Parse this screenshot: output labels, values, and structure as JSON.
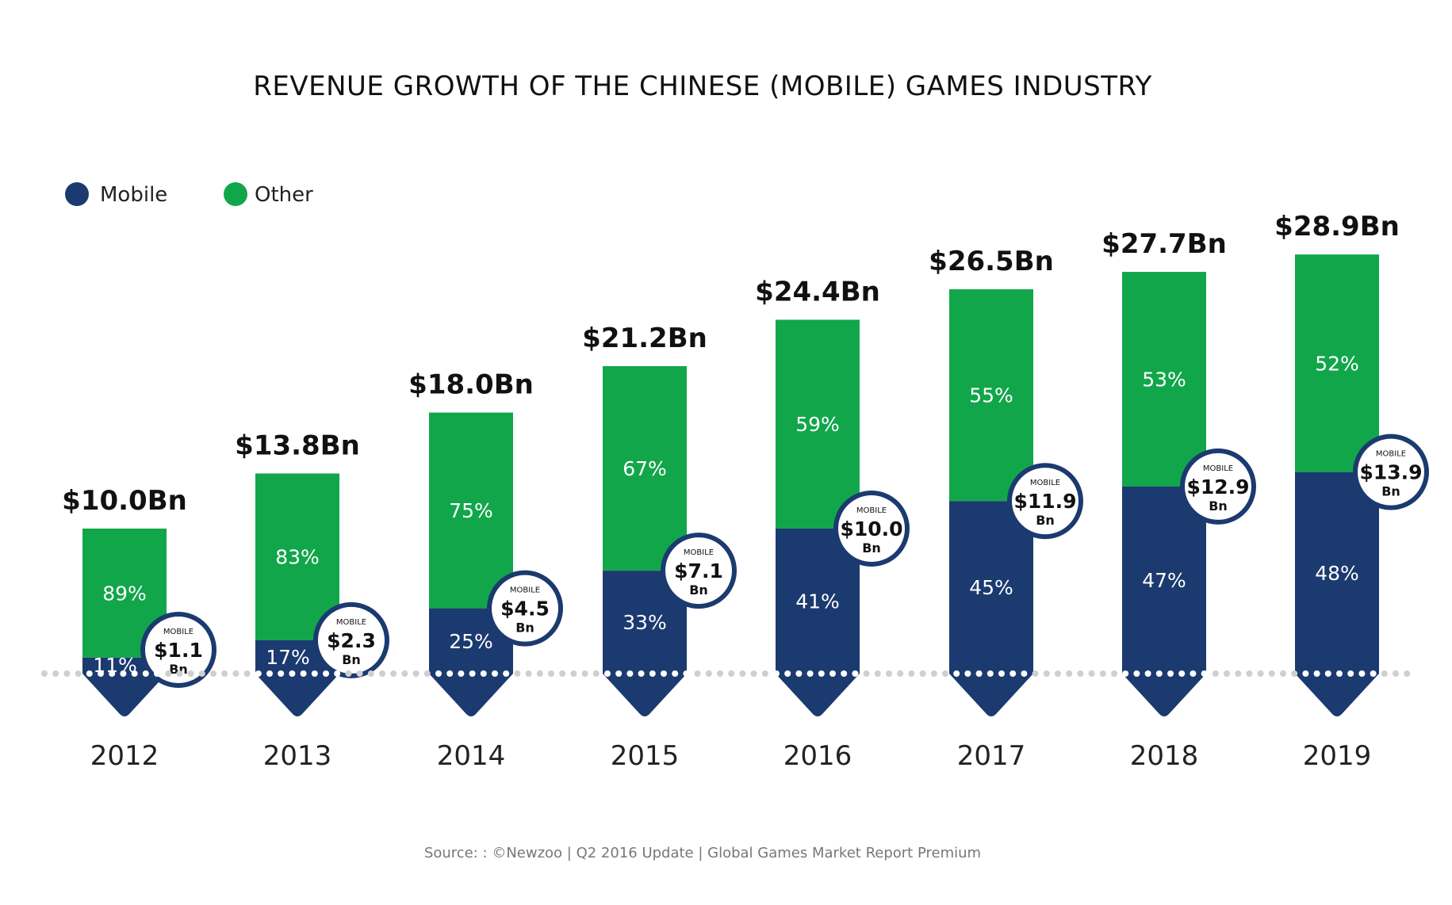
{
  "title": "REVENUE GROWTH OF THE CHINESE (MOBILE) GAMES INDUSTRY",
  "legend": [
    {
      "label": "Mobile",
      "color": "#1b3a6f"
    },
    {
      "label": "Other",
      "color": "#12a64b"
    }
  ],
  "source": "Source: : ©Newzoo | Q2 2016 Update | Global Games Market Report Premium",
  "colors": {
    "mobile": "#1b3a6f",
    "other": "#12a64b",
    "dots": "#cfcfcf"
  },
  "chart_data": {
    "type": "bar",
    "stacked": true,
    "categories": [
      "2012",
      "2013",
      "2014",
      "2015",
      "2016",
      "2017",
      "2018",
      "2019"
    ],
    "totals": [
      10.0,
      13.8,
      18.0,
      21.2,
      24.4,
      26.5,
      27.7,
      28.9
    ],
    "total_labels": [
      "$10.0Bn",
      "$13.8Bn",
      "$18.0Bn",
      "$21.2Bn",
      "$24.4Bn",
      "$26.5Bn",
      "$27.7Bn",
      "$28.9Bn"
    ],
    "series": [
      {
        "name": "Mobile",
        "values": [
          1.1,
          2.3,
          4.5,
          7.1,
          10.0,
          11.9,
          12.9,
          13.9
        ],
        "percent_labels": [
          "11%",
          "17%",
          "25%",
          "33%",
          "41%",
          "45%",
          "47%",
          "48%"
        ]
      },
      {
        "name": "Other",
        "percent_labels": [
          "89%",
          "83%",
          "75%",
          "67%",
          "59%",
          "55%",
          "53%",
          "52%"
        ]
      }
    ],
    "mobile_badge": {
      "caption": "MOBILE",
      "values": [
        "$1.1",
        "$2.3",
        "$4.5",
        "$7.1",
        "$10.0",
        "$11.9",
        "$12.9",
        "$13.9"
      ],
      "unit": "Bn"
    }
  }
}
